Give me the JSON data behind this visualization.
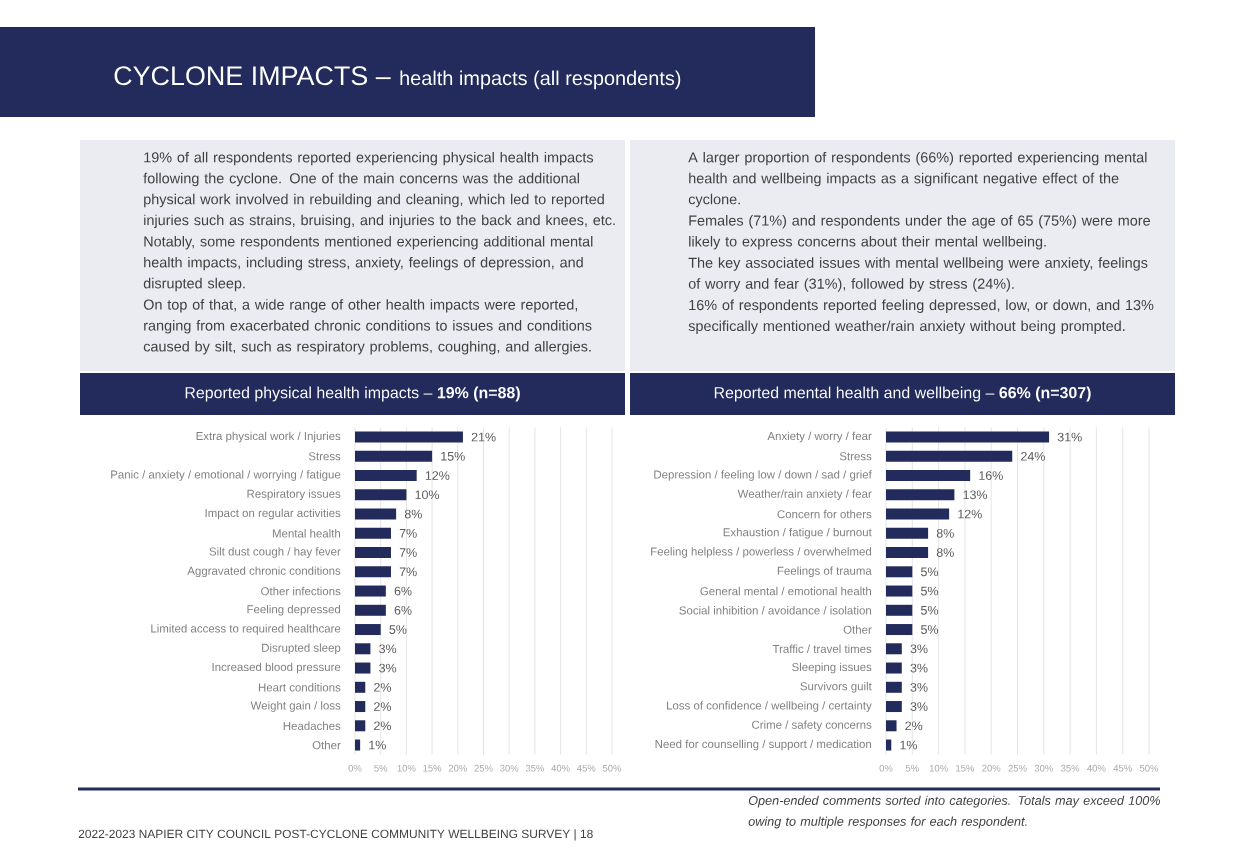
{
  "chart_data": [
    {
      "type": "other",
      "title": "CYCLONE IMPACTS –",
      "subtitle": "health impacts (all respondents)",
      "annotations": [
        "Open-ended comments sorted into categories. Totals may exceed 100% owing to multiple responses for each respondent.",
        "2022-2023 NAPIER CITY COUNCIL POST-CYCLONE COMMUNITY WELLBEING SURVEY | 18"
      ]
    },
    {
      "type": "bar",
      "orientation": "horizontal",
      "title": "Reported physical health impacts – **19% (n=88)**",
      "annotations": [
        "19% of all respondents reported experiencing physical health impacts following the cyclone. One of the main concerns was the additional physical work involved in rebuilding and cleaning, which led to reported injuries such as strains, bruising, and injuries to the back and knees, etc.",
        "Notably, some respondents mentioned experiencing additional mental health impacts, including stress, anxiety, feelings of depression, and disrupted sleep.",
        "On top of that, a wide range of other health impacts were reported, ranging from exacerbated chronic conditions to issues and conditions caused by silt, such as respiratory problems, coughing, and allergies."
      ],
      "categories": [
        "Extra physical work / Injuries",
        "Stress",
        "Panic / anxiety / emotional / worrying / fatigue",
        "Respiratory issues",
        "Impact on regular activities",
        "Mental health",
        "Silt dust cough / hay fever",
        "Aggravated chronic conditions",
        "Other infections",
        "Feeling depressed",
        "Limited access to required healthcare",
        "Disrupted sleep",
        "Increased blood pressure",
        "Heart conditions",
        "Weight gain / loss",
        "Headaches",
        "Other"
      ],
      "values": [
        21,
        15,
        12,
        10,
        8,
        7,
        7,
        7,
        6,
        6,
        5,
        3,
        3,
        2,
        2,
        2,
        1
      ],
      "value_labels": [
        "21%",
        "15%",
        "12%",
        "10%",
        "8%",
        "7%",
        "7%",
        "7%",
        "6%",
        "6%",
        "5%",
        "3%",
        "3%",
        "2%",
        "2%",
        "2%",
        "1%"
      ],
      "color": "#222b5b",
      "xlim": [
        0,
        50
      ],
      "xticks": [
        {
          "value": 0,
          "label": "0%"
        },
        {
          "value": 5,
          "label": "5%"
        },
        {
          "value": 10,
          "label": "10%"
        },
        {
          "value": 15,
          "label": "15%"
        },
        {
          "value": 20,
          "label": "20%"
        },
        {
          "value": 25,
          "label": "25%"
        },
        {
          "value": 30,
          "label": "30%"
        },
        {
          "value": 35,
          "label": "35%"
        },
        {
          "value": 40,
          "label": "40%"
        },
        {
          "value": 45,
          "label": "45%"
        },
        {
          "value": 50,
          "label": "50%"
        }
      ],
      "grid": "x"
    },
    {
      "type": "bar",
      "orientation": "horizontal",
      "title": "Reported mental health and wellbeing – **66% (n=307)**",
      "annotations": [
        "A larger proportion of respondents (66%) reported experiencing mental health and wellbeing impacts as a significant negative effect of the cyclone.",
        "Females (71%) and respondents under the age of 65 (75%) were more likely to express concerns about their mental wellbeing.",
        "The key associated issues with mental wellbeing were anxiety, feelings of worry and fear (31%), followed by stress (24%).",
        "16% of respondents reported feeling depressed, low, or down, and 13% specifically mentioned weather/rain anxiety without being prompted."
      ],
      "categories": [
        "Anxiety / worry / fear",
        "Stress",
        "Depression / feeling low / down / sad / grief",
        "Weather/rain anxiety / fear",
        "Concern for others",
        "Exhaustion / fatigue / burnout",
        "Feeling helpless / powerless / overwhelmed",
        "Feelings of trauma",
        "General mental / emotional health",
        "Social inhibition / avoidance / isolation",
        "Other",
        "Traffic / travel times",
        "Sleeping issues",
        "Survivors guilt",
        "Loss of confidence / wellbeing / certainty",
        "Crime / safety concerns",
        "Need for counselling / support / medication"
      ],
      "values": [
        31,
        24,
        16,
        13,
        12,
        8,
        8,
        5,
        5,
        5,
        5,
        3,
        3,
        3,
        3,
        2,
        1
      ],
      "value_labels": [
        "31%",
        "24%",
        "16%",
        "13%",
        "12%",
        "8%",
        "8%",
        "5%",
        "5%",
        "5%",
        "5%",
        "3%",
        "3%",
        "3%",
        "3%",
        "2%",
        "1%"
      ],
      "color": "#222b5b",
      "xlim": [
        0,
        50
      ],
      "xticks": [
        {
          "value": 0,
          "label": "0%"
        },
        {
          "value": 5,
          "label": "5%"
        },
        {
          "value": 10,
          "label": "10%"
        },
        {
          "value": 15,
          "label": "15%"
        },
        {
          "value": 20,
          "label": "20%"
        },
        {
          "value": 25,
          "label": "25%"
        },
        {
          "value": 30,
          "label": "30%"
        },
        {
          "value": 35,
          "label": "35%"
        },
        {
          "value": 40,
          "label": "40%"
        },
        {
          "value": 45,
          "label": "45%"
        },
        {
          "value": 50,
          "label": "50%"
        }
      ],
      "grid": "x"
    }
  ]
}
